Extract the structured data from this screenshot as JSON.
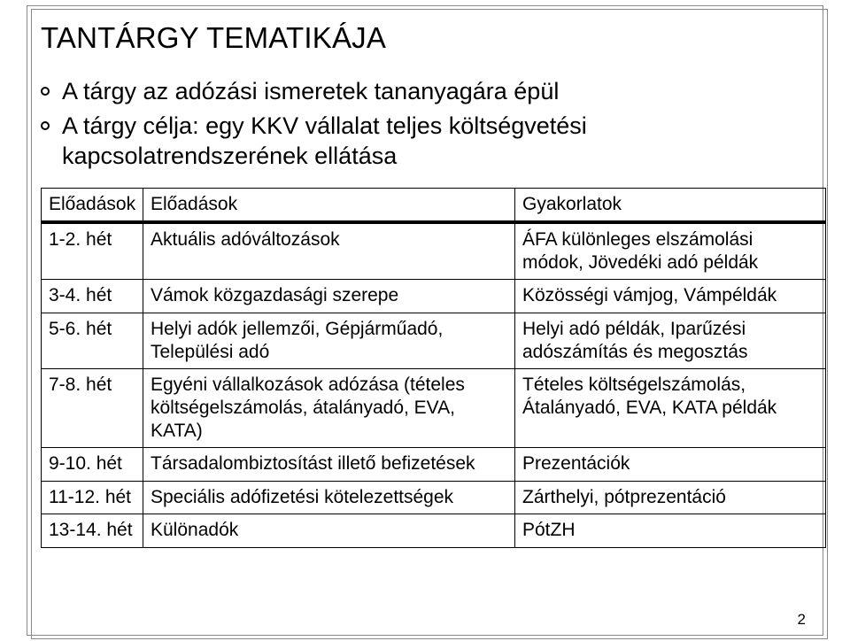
{
  "title": "TANTÁRGY TEMATIKÁJA",
  "bullets": [
    "A tárgy az adózási ismeretek tananyagára épül",
    "A tárgy célja: egy KKV vállalat teljes költségvetési kapcsolatrendszerének ellátása"
  ],
  "table": {
    "headers": [
      "Előadások",
      "Előadások",
      "Gyakorlatok"
    ],
    "rows": [
      [
        "1-2. hét",
        "Aktuális adóváltozások",
        "ÁFA különleges elszámolási módok, Jövedéki adó példák"
      ],
      [
        "3-4. hét",
        "Vámok közgazdasági szerepe",
        "Közösségi vámjog, Vámpéldák"
      ],
      [
        "5-6. hét",
        "Helyi adók jellemzői, Gépjárműadó, Települési adó",
        "Helyi adó példák, Iparűzési adószámítás és megosztás"
      ],
      [
        "7-8. hét",
        "Egyéni vállalkozások adózása (tételes költségelszámolás, átalányadó, EVA, KATA)",
        "Tételes költségelszámolás, Átalányadó, EVA, KATA példák"
      ],
      [
        "9-10. hét",
        "Társadalombiztosítást illető befizetések",
        "Prezentációk"
      ],
      [
        "11-12. hét",
        "Speciális adófizetési kötelezettségek",
        "Zárthelyi, pótprezentáció"
      ],
      [
        "13-14. hét",
        "Különadók",
        "PótZH"
      ]
    ]
  },
  "page_number": "2"
}
